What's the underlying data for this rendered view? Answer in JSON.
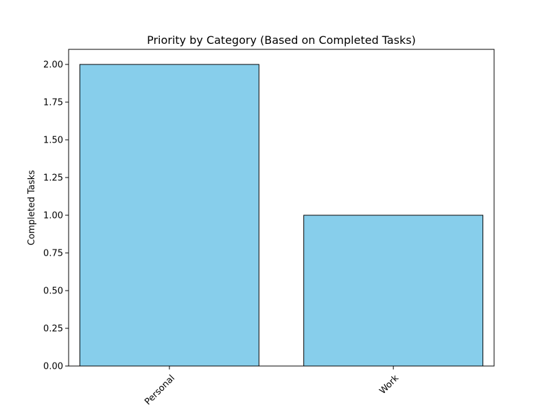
{
  "chart_data": {
    "type": "bar",
    "title": "Priority by Category (Based on Completed Tasks)",
    "xlabel": "",
    "ylabel": "Completed Tasks",
    "categories": [
      "Personal",
      "Work"
    ],
    "values": [
      2,
      1
    ],
    "ylim": [
      0,
      2.1
    ],
    "yticks": [
      "0.00",
      "0.25",
      "0.50",
      "0.75",
      "1.00",
      "1.25",
      "1.50",
      "1.75",
      "2.00"
    ],
    "bar_color": "#87ceeb",
    "bar_edge_color": "#000000",
    "grid": false,
    "legend": "none"
  }
}
